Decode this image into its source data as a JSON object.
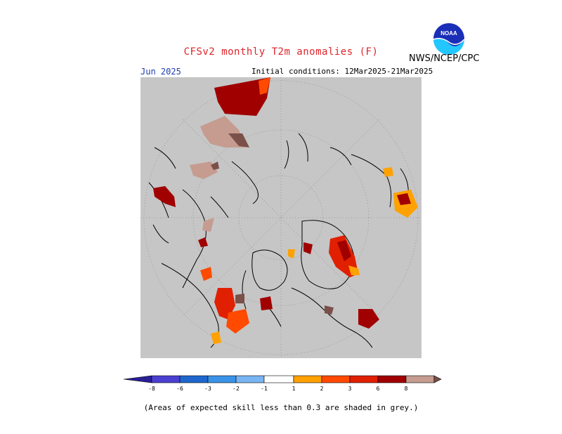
{
  "header": {
    "title": "CFSv2 monthly T2m anomalies (F)",
    "agency": "NWS/NCEP/CPC",
    "logo_text": "NOAA"
  },
  "map": {
    "month": "Jun 2025",
    "initial_conditions": "Initial conditions: 12Mar2025-21Mar2025",
    "background_color": "#c6c6c6",
    "projection": "north-polar-stereographic"
  },
  "legend": {
    "ticks": [
      "-8",
      "-6",
      "-3",
      "-2",
      "-1",
      "1",
      "2",
      "3",
      "6",
      "8"
    ],
    "colors": {
      "lt_m8": "#2a1f96",
      "m8_m6": "#4b3fd2",
      "m6_m3": "#1f67cc",
      "m3_m2": "#3a93e8",
      "m2_m1": "#78b5f2",
      "m1_1": "#ffffff",
      "p1_2": "#ffa100",
      "p2_3": "#ff4a00",
      "p3_6": "#e02000",
      "p6_8": "#a00000",
      "p8_gt": "#c59c8f",
      "gt": "#7a5049"
    }
  },
  "footnote": "(Areas of expected skill less than 0.3 are shaded in grey.)"
}
